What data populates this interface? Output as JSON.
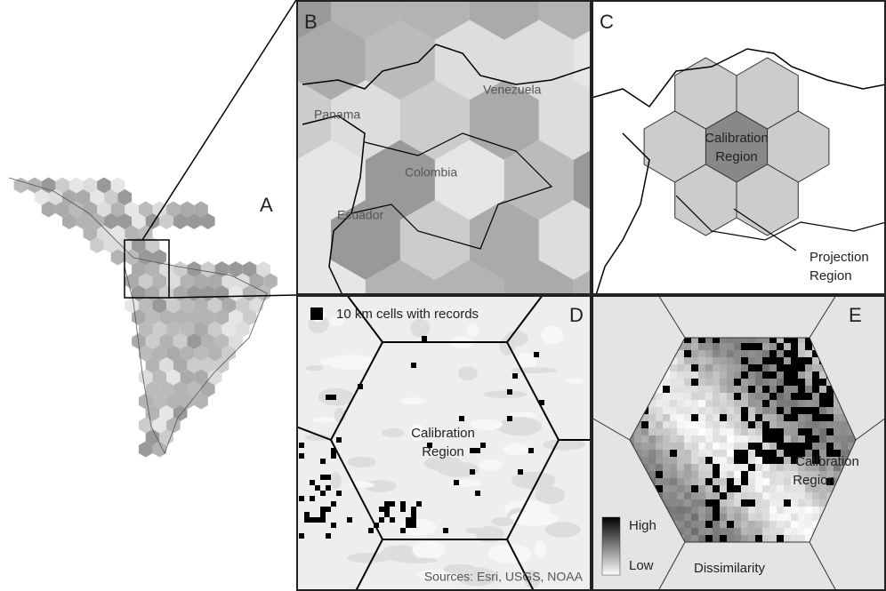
{
  "panel_a": {
    "label": "A"
  },
  "panel_b": {
    "label": "B",
    "places": [
      "Panama",
      "Colombia",
      "Venezuela",
      "Ecuador"
    ]
  },
  "panel_c": {
    "label": "C",
    "calibration": [
      "Calibration",
      "Region"
    ],
    "projection": [
      "Projection",
      "Region"
    ]
  },
  "panel_d": {
    "label": "D",
    "legend": "10 km cells with records",
    "calibration": [
      "Calibration",
      "Region"
    ],
    "source": "Sources: Esri, USGS, NOAA"
  },
  "panel_e": {
    "label": "E",
    "calibration": [
      "Calibration",
      "Region"
    ],
    "legend_high": "High",
    "legend_low": "Low",
    "legend_title": "Dissimilarity"
  }
}
